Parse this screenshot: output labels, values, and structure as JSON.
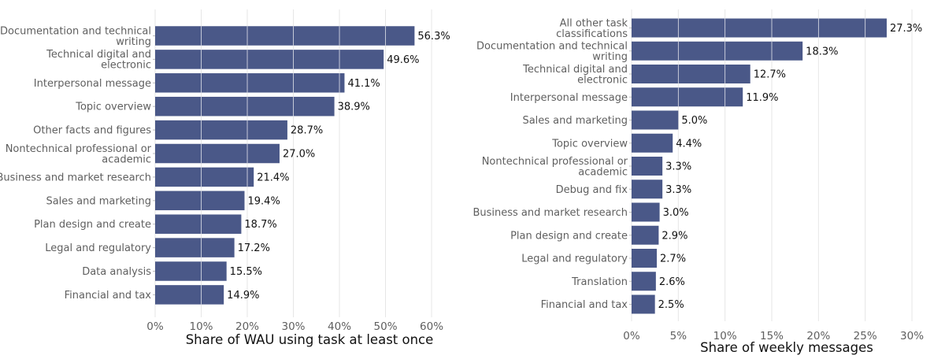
{
  "colors": {
    "bar": "#4a5888",
    "grid": "#e6e6e6",
    "gridOverBar": "#ffffff",
    "axis": "#bdbdbd"
  },
  "chart_data": [
    {
      "type": "bar",
      "orientation": "horizontal",
      "categories": [
        "Documentation and technical writing",
        "Technical digital and electronic",
        "Interpersonal message",
        "Topic overview",
        "Other facts and figures",
        "Nontechnical professional or academic",
        "Business and market research",
        "Sales and marketing",
        "Plan design and create",
        "Legal and regulatory",
        "Data analysis",
        "Financial and tax"
      ],
      "category_lines": [
        [
          "Documentation and technical",
          "writing"
        ],
        [
          "Technical digital and",
          "electronic"
        ],
        [
          "Interpersonal message"
        ],
        [
          "Topic overview"
        ],
        [
          "Other facts and figures"
        ],
        [
          "Nontechnical professional or",
          "academic"
        ],
        [
          "Business and market research"
        ],
        [
          "Sales and marketing"
        ],
        [
          "Plan design and create"
        ],
        [
          "Legal and regulatory"
        ],
        [
          "Data analysis"
        ],
        [
          "Financial and tax"
        ]
      ],
      "values": [
        56.3,
        49.6,
        41.1,
        38.9,
        28.7,
        27.0,
        21.4,
        19.4,
        18.7,
        17.2,
        15.5,
        14.9
      ],
      "value_labels": [
        "56.3%",
        "49.6%",
        "41.1%",
        "38.9%",
        "28.7%",
        "27.0%",
        "21.4%",
        "19.4%",
        "18.7%",
        "17.2%",
        "15.5%",
        "14.9%"
      ],
      "xticks": [
        0,
        10,
        20,
        30,
        40,
        50,
        60
      ],
      "xtick_labels": [
        "0%",
        "10%",
        "20%",
        "30%",
        "40%",
        "50%",
        "60%"
      ],
      "xlim": [
        0,
        67
      ],
      "xlabel": "Share of WAU using task at least once",
      "grid": true
    },
    {
      "type": "bar",
      "orientation": "horizontal",
      "categories": [
        "All other task classifications",
        "Documentation and technical writing",
        "Technical digital and electronic",
        "Interpersonal message",
        "Sales and marketing",
        "Topic overview",
        "Nontechnical professional or academic",
        "Debug and fix",
        "Business and market research",
        "Plan design and create",
        "Legal and regulatory",
        "Translation",
        "Financial and tax"
      ],
      "category_lines": [
        [
          "All other task",
          "classifications"
        ],
        [
          "Documentation and technical",
          "writing"
        ],
        [
          "Technical digital and",
          "electronic"
        ],
        [
          "Interpersonal message"
        ],
        [
          "Sales and marketing"
        ],
        [
          "Topic overview"
        ],
        [
          "Nontechnical professional or",
          "academic"
        ],
        [
          "Debug and fix"
        ],
        [
          "Business and market research"
        ],
        [
          "Plan design and create"
        ],
        [
          "Legal and regulatory"
        ],
        [
          "Translation"
        ],
        [
          "Financial and tax"
        ]
      ],
      "values": [
        27.3,
        18.3,
        12.7,
        11.9,
        5.0,
        4.4,
        3.3,
        3.3,
        3.0,
        2.9,
        2.7,
        2.6,
        2.5
      ],
      "value_labels": [
        "27.3%",
        "18.3%",
        "12.7%",
        "11.9%",
        "5.0%",
        "4.4%",
        "3.3%",
        "3.3%",
        "3.0%",
        "2.9%",
        "2.7%",
        "2.6%",
        "2.5%"
      ],
      "xticks": [
        0,
        5,
        10,
        15,
        20,
        25,
        30
      ],
      "xtick_labels": [
        "0%",
        "5%",
        "10%",
        "15%",
        "20%",
        "25%",
        "30%"
      ],
      "xlim": [
        0,
        33.2
      ],
      "xlabel": "Share of weekly messages",
      "grid": true
    }
  ]
}
